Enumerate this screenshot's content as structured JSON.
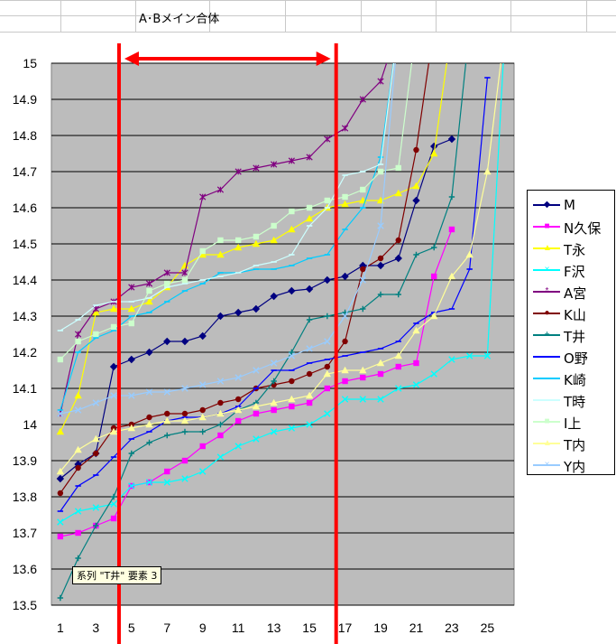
{
  "sheet": {
    "title": "A･Bメイン合体"
  },
  "tooltip": "系列 \"T井\" 要素 3",
  "colors": {
    "plot_bg": "#bcbcbc",
    "annotation": "#ff0000"
  },
  "chart_data": {
    "type": "line",
    "title": "",
    "xlabel": "",
    "ylabel": "",
    "ylim": [
      13.5,
      15
    ],
    "yticks": [
      "13.5",
      "13.6",
      "13.7",
      "13.8",
      "13.9",
      "14",
      "14.1",
      "14.2",
      "14.3",
      "14.4",
      "14.5",
      "14.6",
      "14.7",
      "14.8",
      "14.9",
      "15"
    ],
    "xticks": [
      "1",
      "3",
      "5",
      "7",
      "9",
      "11",
      "13",
      "15",
      "17",
      "19",
      "21",
      "23",
      "25"
    ],
    "xlim": [
      0.5,
      26.5
    ],
    "grid": "horizontal",
    "legend": "right",
    "annotation": {
      "type": "double-arrow-range",
      "x_from": 4.3,
      "x_to": 16.5
    },
    "series": [
      {
        "name": "M",
        "color": "#000080",
        "marker": "diamond",
        "values": [
          13.85,
          13.89,
          13.92,
          14.16,
          14.18,
          14.2,
          14.23,
          14.23,
          14.245,
          14.3,
          14.31,
          14.32,
          14.355,
          14.37,
          14.375,
          14.4,
          14.41,
          14.44,
          14.44,
          14.46,
          14.62,
          14.77,
          14.79
        ]
      },
      {
        "name": "N久保",
        "color": "#ff00ff",
        "marker": "square",
        "values": [
          13.69,
          13.7,
          13.72,
          13.74,
          13.83,
          13.84,
          13.87,
          13.9,
          13.94,
          13.97,
          14.01,
          14.03,
          14.04,
          14.05,
          14.06,
          14.1,
          14.12,
          14.13,
          14.14,
          14.16,
          14.17,
          14.41,
          14.54
        ]
      },
      {
        "name": "T永",
        "color": "#ffff00",
        "marker": "triangle",
        "values": [
          13.98,
          14.08,
          14.31,
          14.32,
          14.32,
          14.34,
          14.38,
          14.44,
          14.47,
          14.47,
          14.49,
          14.5,
          14.51,
          14.54,
          14.57,
          14.6,
          14.61,
          14.62,
          14.62,
          14.64,
          14.66,
          14.75,
          15.1
        ]
      },
      {
        "name": "F沢",
        "color": "#00ffff",
        "marker": "x",
        "values": [
          13.73,
          13.76,
          13.77,
          13.78,
          13.83,
          13.84,
          13.84,
          13.85,
          13.87,
          13.91,
          13.94,
          13.96,
          13.98,
          13.99,
          14.0,
          14.03,
          14.07,
          14.07,
          14.07,
          14.1,
          14.11,
          14.14,
          14.18,
          14.19,
          14.19,
          15.1
        ]
      },
      {
        "name": "A宮",
        "color": "#800080",
        "marker": "star",
        "values": [
          14.03,
          14.25,
          14.32,
          14.34,
          14.38,
          14.39,
          14.42,
          14.42,
          14.63,
          14.65,
          14.7,
          14.71,
          14.72,
          14.73,
          14.74,
          14.79,
          14.82,
          14.9,
          14.95,
          15.1
        ]
      },
      {
        "name": "K山",
        "color": "#800000",
        "marker": "circle",
        "values": [
          13.81,
          13.88,
          13.92,
          13.99,
          14.0,
          14.02,
          14.03,
          14.03,
          14.04,
          14.06,
          14.07,
          14.1,
          14.11,
          14.12,
          14.14,
          14.16,
          14.23,
          14.43,
          14.46,
          14.51,
          14.76,
          15.1
        ]
      },
      {
        "name": "T井",
        "color": "#008080",
        "marker": "plus",
        "values": [
          13.52,
          13.63,
          13.72,
          13.8,
          13.92,
          13.95,
          13.97,
          13.98,
          13.98,
          14.0,
          14.04,
          14.06,
          14.12,
          14.2,
          14.29,
          14.3,
          14.31,
          14.32,
          14.36,
          14.36,
          14.47,
          14.49,
          14.63,
          15.1
        ]
      },
      {
        "name": "O野",
        "color": "#0000ff",
        "marker": "dash",
        "values": [
          13.76,
          13.83,
          13.86,
          13.91,
          13.96,
          13.98,
          14.01,
          14.02,
          14.02,
          14.03,
          14.05,
          14.1,
          14.15,
          14.15,
          14.17,
          14.18,
          14.19,
          14.2,
          14.21,
          14.23,
          14.28,
          14.31,
          14.32,
          14.43,
          14.96
        ]
      },
      {
        "name": "K崎",
        "color": "#00ccff",
        "marker": "dash",
        "values": [
          14.04,
          14.2,
          14.24,
          14.26,
          14.3,
          14.31,
          14.34,
          14.37,
          14.39,
          14.42,
          14.42,
          14.43,
          14.43,
          14.44,
          14.46,
          14.47,
          14.54,
          14.6,
          14.74,
          15.1
        ]
      },
      {
        "name": "T時",
        "color": "#ccffff",
        "marker": "dash",
        "values": [
          14.26,
          14.29,
          14.33,
          14.34,
          14.34,
          14.35,
          14.38,
          14.39,
          14.4,
          14.41,
          14.42,
          14.44,
          14.45,
          14.47,
          14.55,
          14.6,
          14.69,
          14.7,
          14.72,
          15.1
        ]
      },
      {
        "name": "I上",
        "color": "#ccffcc",
        "marker": "square",
        "values": [
          14.18,
          14.23,
          14.25,
          14.27,
          14.28,
          14.37,
          14.39,
          14.4,
          14.48,
          14.51,
          14.51,
          14.52,
          14.55,
          14.59,
          14.6,
          14.62,
          14.63,
          14.65,
          14.7,
          14.71,
          15.1
        ]
      },
      {
        "name": "T内",
        "color": "#ffff99",
        "marker": "triangle",
        "values": [
          13.87,
          13.93,
          13.96,
          13.98,
          13.99,
          14.0,
          14.01,
          14.01,
          14.02,
          14.03,
          14.04,
          14.05,
          14.06,
          14.07,
          14.08,
          14.14,
          14.15,
          14.15,
          14.17,
          14.19,
          14.26,
          14.3,
          14.41,
          14.47,
          14.7,
          15.1
        ]
      },
      {
        "name": "Y内",
        "color": "#99ccff",
        "marker": "x",
        "values": [
          14.03,
          14.04,
          14.06,
          14.08,
          14.08,
          14.09,
          14.09,
          14.1,
          14.11,
          14.12,
          14.13,
          14.15,
          14.17,
          14.19,
          14.21,
          14.23,
          14.3,
          14.4,
          14.55,
          15.1
        ]
      }
    ]
  }
}
